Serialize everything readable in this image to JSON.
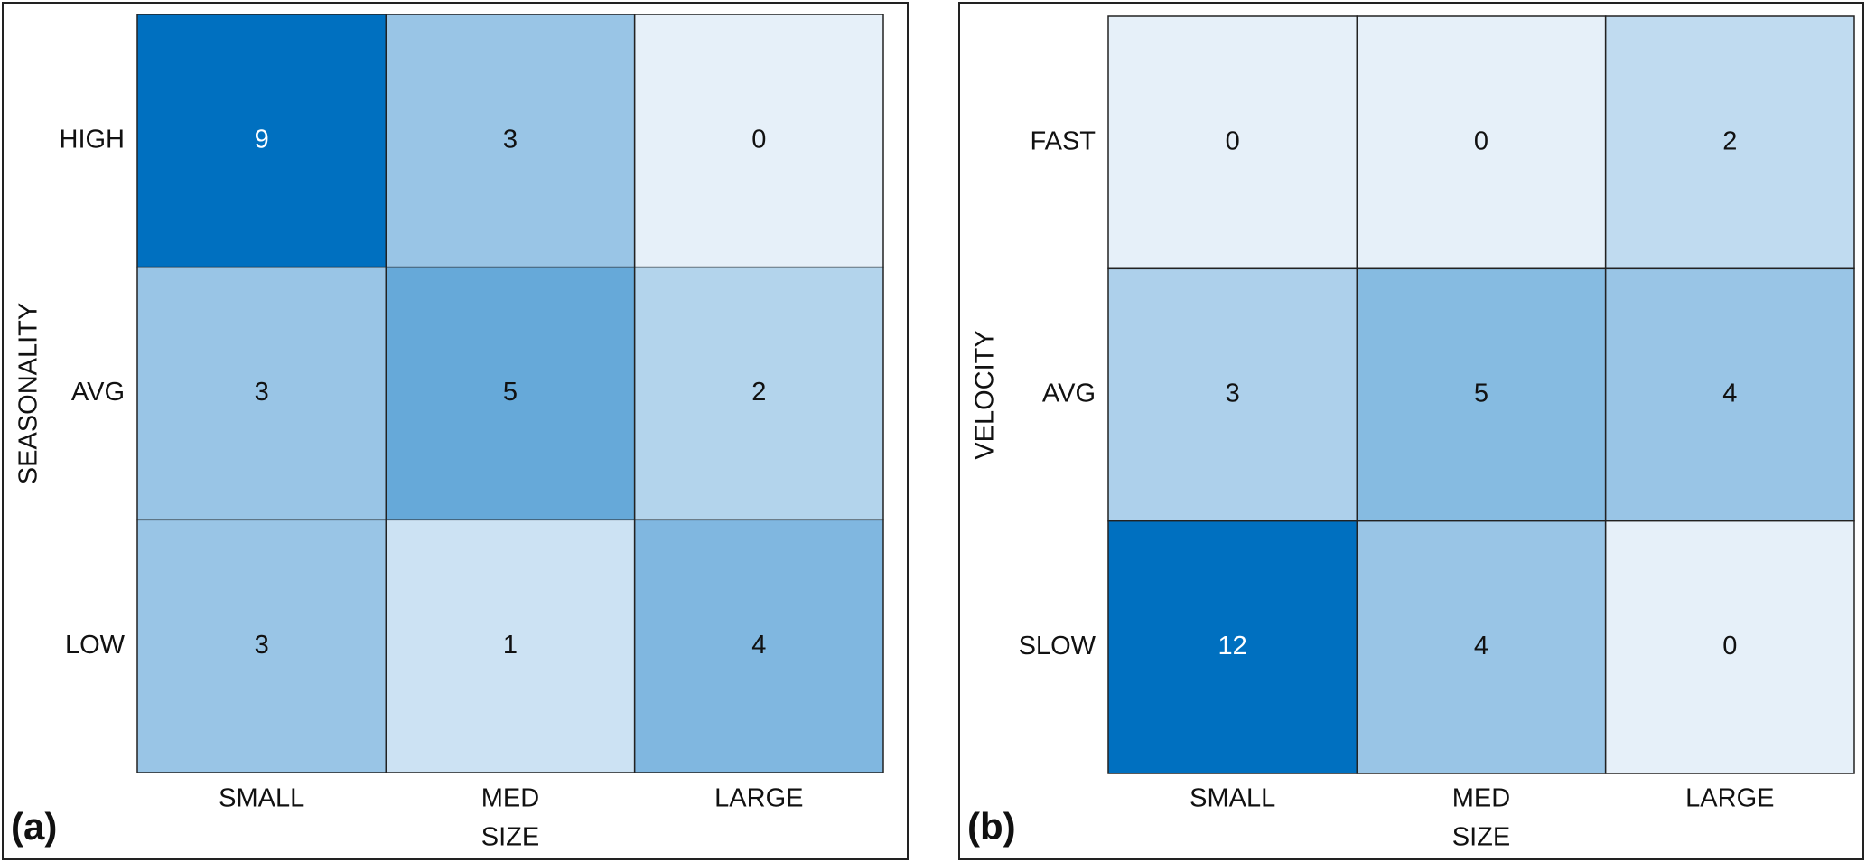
{
  "chart_data": [
    {
      "type": "heatmap",
      "panel_label": "(a)",
      "x_label": "SIZE",
      "y_label": "SEASONALITY",
      "categories": [
        "SMALL",
        "MED",
        "LARGE"
      ],
      "y_categories": [
        "HIGH",
        "AVG",
        "LOW"
      ],
      "values": [
        [
          9,
          3,
          0
        ],
        [
          3,
          5,
          2
        ],
        [
          3,
          1,
          4
        ]
      ],
      "cmap": [
        "#e6f0f9",
        "#0070c0"
      ]
    },
    {
      "type": "heatmap",
      "panel_label": "(b)",
      "x_label": "SIZE",
      "y_label": "VELOCITY",
      "categories": [
        "SMALL",
        "MED",
        "LARGE"
      ],
      "y_categories": [
        "FAST",
        "AVG",
        "SLOW"
      ],
      "values": [
        [
          0,
          0,
          2
        ],
        [
          3,
          5,
          4
        ],
        [
          12,
          4,
          0
        ]
      ],
      "cmap": [
        "#e6f0f9",
        "#0070c0"
      ]
    }
  ]
}
